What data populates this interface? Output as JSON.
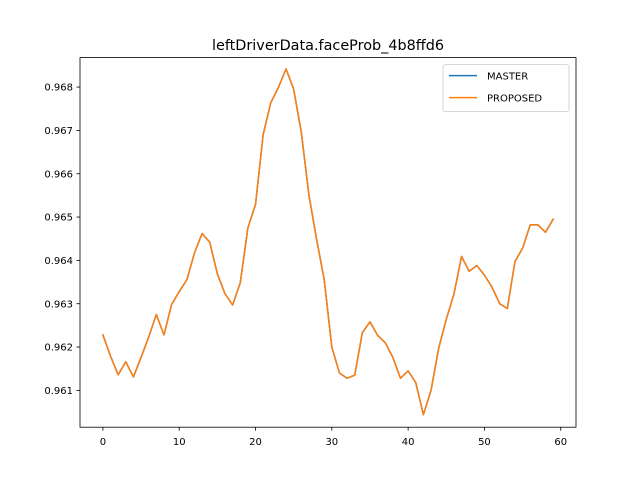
{
  "chart_data": {
    "type": "line",
    "title": "leftDriverData.faceProb_4b8ffd6",
    "xlabel": "",
    "ylabel": "",
    "xlim": [
      -3.0,
      62.0
    ],
    "ylim": [
      0.96015,
      0.96868
    ],
    "xticks": [
      0,
      10,
      20,
      30,
      40,
      50,
      60
    ],
    "xtick_labels": [
      "0",
      "10",
      "20",
      "30",
      "40",
      "50",
      "60"
    ],
    "yticks": [
      0.961,
      0.962,
      0.963,
      0.964,
      0.965,
      0.966,
      0.967,
      0.968
    ],
    "ytick_labels": [
      "0.961",
      "0.962",
      "0.963",
      "0.964",
      "0.965",
      "0.966",
      "0.967",
      "0.968"
    ],
    "grid": false,
    "legend": {
      "position": "upper right"
    },
    "x": [
      0,
      1,
      2,
      3,
      4,
      5,
      6,
      7,
      8,
      9,
      10,
      11,
      12,
      13,
      14,
      15,
      16,
      17,
      18,
      19,
      20,
      21,
      22,
      23,
      24,
      25,
      26,
      27,
      28,
      29,
      30,
      31,
      32,
      33,
      34,
      35,
      36,
      37,
      38,
      39,
      40,
      41,
      42,
      43,
      44,
      45,
      46,
      47,
      48,
      49,
      50,
      51,
      52,
      53,
      54,
      55,
      56,
      57,
      58,
      59
    ],
    "series": [
      {
        "name": "MASTER",
        "color": "#1f77b4",
        "values": [
          0.96228,
          0.96179,
          0.96136,
          0.96166,
          0.96131,
          0.96176,
          0.96223,
          0.96275,
          0.96228,
          0.96298,
          0.96328,
          0.96355,
          0.96417,
          0.96462,
          0.96442,
          0.96369,
          0.96323,
          0.96297,
          0.96348,
          0.96475,
          0.96529,
          0.9669,
          0.96764,
          0.96799,
          0.96842,
          0.96795,
          0.96696,
          0.96551,
          0.96449,
          0.96356,
          0.962,
          0.9614,
          0.96128,
          0.96135,
          0.96233,
          0.96258,
          0.96227,
          0.9621,
          0.96176,
          0.96128,
          0.96145,
          0.96118,
          0.96044,
          0.961,
          0.96197,
          0.96264,
          0.96322,
          0.96409,
          0.96375,
          0.96388,
          0.96366,
          0.96338,
          0.963,
          0.96289,
          0.96397,
          0.96428,
          0.96482,
          0.96482,
          0.96465,
          0.96495
        ]
      },
      {
        "name": "PROPOSED",
        "color": "#ff7f0e",
        "values": [
          0.96228,
          0.96179,
          0.96136,
          0.96166,
          0.96131,
          0.96176,
          0.96223,
          0.96275,
          0.96228,
          0.96298,
          0.96328,
          0.96355,
          0.96417,
          0.96462,
          0.96442,
          0.96369,
          0.96323,
          0.96297,
          0.96348,
          0.96475,
          0.96529,
          0.9669,
          0.96764,
          0.96799,
          0.96842,
          0.96795,
          0.96696,
          0.96551,
          0.96449,
          0.96356,
          0.962,
          0.9614,
          0.96128,
          0.96135,
          0.96233,
          0.96258,
          0.96227,
          0.9621,
          0.96176,
          0.96128,
          0.96145,
          0.96118,
          0.96044,
          0.961,
          0.96197,
          0.96264,
          0.96322,
          0.96409,
          0.96375,
          0.96388,
          0.96366,
          0.96338,
          0.963,
          0.96289,
          0.96397,
          0.96428,
          0.96482,
          0.96482,
          0.96465,
          0.96495
        ]
      }
    ]
  }
}
